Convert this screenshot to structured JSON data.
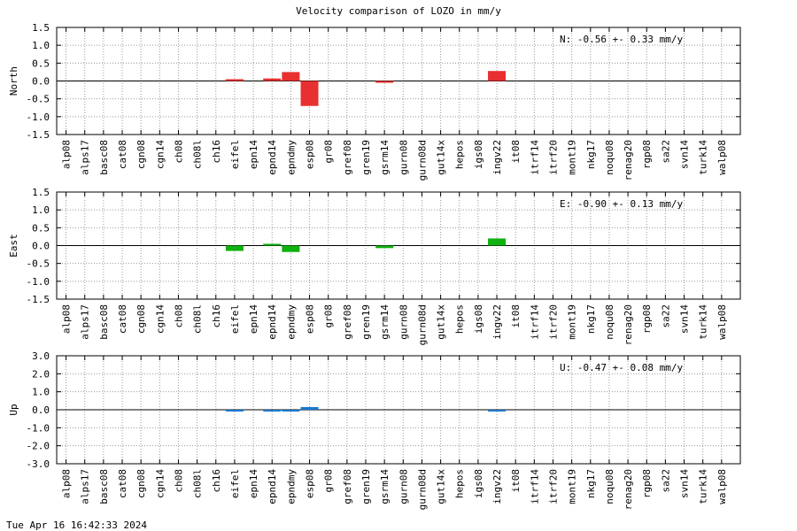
{
  "chart_data": {
    "type": "bar",
    "title": "Velocity comparison of LOZO in mm/y",
    "categories": [
      "alp08",
      "alps17",
      "basc08",
      "cat08",
      "cgn08",
      "cgn14",
      "ch08",
      "ch08l",
      "ch16",
      "eifel",
      "epn14",
      "epnd14",
      "epndmy",
      "esp08",
      "gr08",
      "gref08",
      "gren19",
      "gsrm14",
      "gurn08",
      "gurn08d",
      "gut14x",
      "hepos",
      "igs08",
      "ingv22",
      "it08",
      "itrf14",
      "itrf20",
      "mont19",
      "nkg17",
      "noqu08",
      "renag20",
      "rgp08",
      "sa22",
      "svn14",
      "turk14",
      "walp08"
    ],
    "grid": true,
    "panels": [
      {
        "ylabel": "North",
        "color": "#e83030",
        "ylim": [
          -1.5,
          1.5
        ],
        "yticks": [
          "1.5",
          "1.0",
          "0.5",
          "0.0",
          "-0.5",
          "-1.0",
          "-1.5"
        ],
        "annotation": "N:  -0.56 +-  0.33 mm/y",
        "values": [
          0,
          0,
          0,
          0,
          0,
          0,
          0,
          0,
          0,
          0.05,
          0,
          0.07,
          0.25,
          -0.7,
          0,
          0,
          0,
          -0.05,
          0,
          0,
          0,
          0,
          0,
          0.28,
          0,
          0,
          0,
          0,
          0,
          0,
          0,
          0,
          0,
          0,
          0,
          0
        ]
      },
      {
        "ylabel": "East",
        "color": "#10b010",
        "ylim": [
          -1.5,
          1.5
        ],
        "yticks": [
          "1.5",
          "1.0",
          "0.5",
          "0.0",
          "-0.5",
          "-1.0",
          "-1.5"
        ],
        "annotation": "E:  -0.90 +-  0.13 mm/y",
        "values": [
          0,
          0,
          0,
          0,
          0,
          0,
          0,
          0,
          0,
          -0.15,
          0,
          0.05,
          -0.18,
          0,
          0,
          0,
          0,
          -0.07,
          0,
          0,
          0,
          0,
          0,
          0.2,
          0,
          0,
          0,
          0,
          0,
          0,
          0,
          0,
          0,
          0,
          0,
          0
        ]
      },
      {
        "ylabel": "Up",
        "color": "#1878d0",
        "ylim": [
          -3.0,
          3.0
        ],
        "yticks": [
          "3.0",
          "2.0",
          "1.0",
          "0.0",
          "-1.0",
          "-2.0",
          "-3.0"
        ],
        "annotation": "U:  -0.47 +-  0.08 mm/y",
        "values": [
          0,
          0,
          0,
          0,
          0,
          0,
          0,
          0,
          0,
          -0.05,
          0,
          -0.05,
          -0.05,
          0.15,
          0,
          0,
          0,
          0,
          0,
          0,
          0,
          0,
          0,
          -0.05,
          0,
          0,
          0,
          0,
          0,
          0,
          0,
          0,
          0,
          0,
          0,
          0
        ]
      }
    ]
  },
  "footer": {
    "timestamp": "Tue Apr 16 16:42:33 2024"
  }
}
